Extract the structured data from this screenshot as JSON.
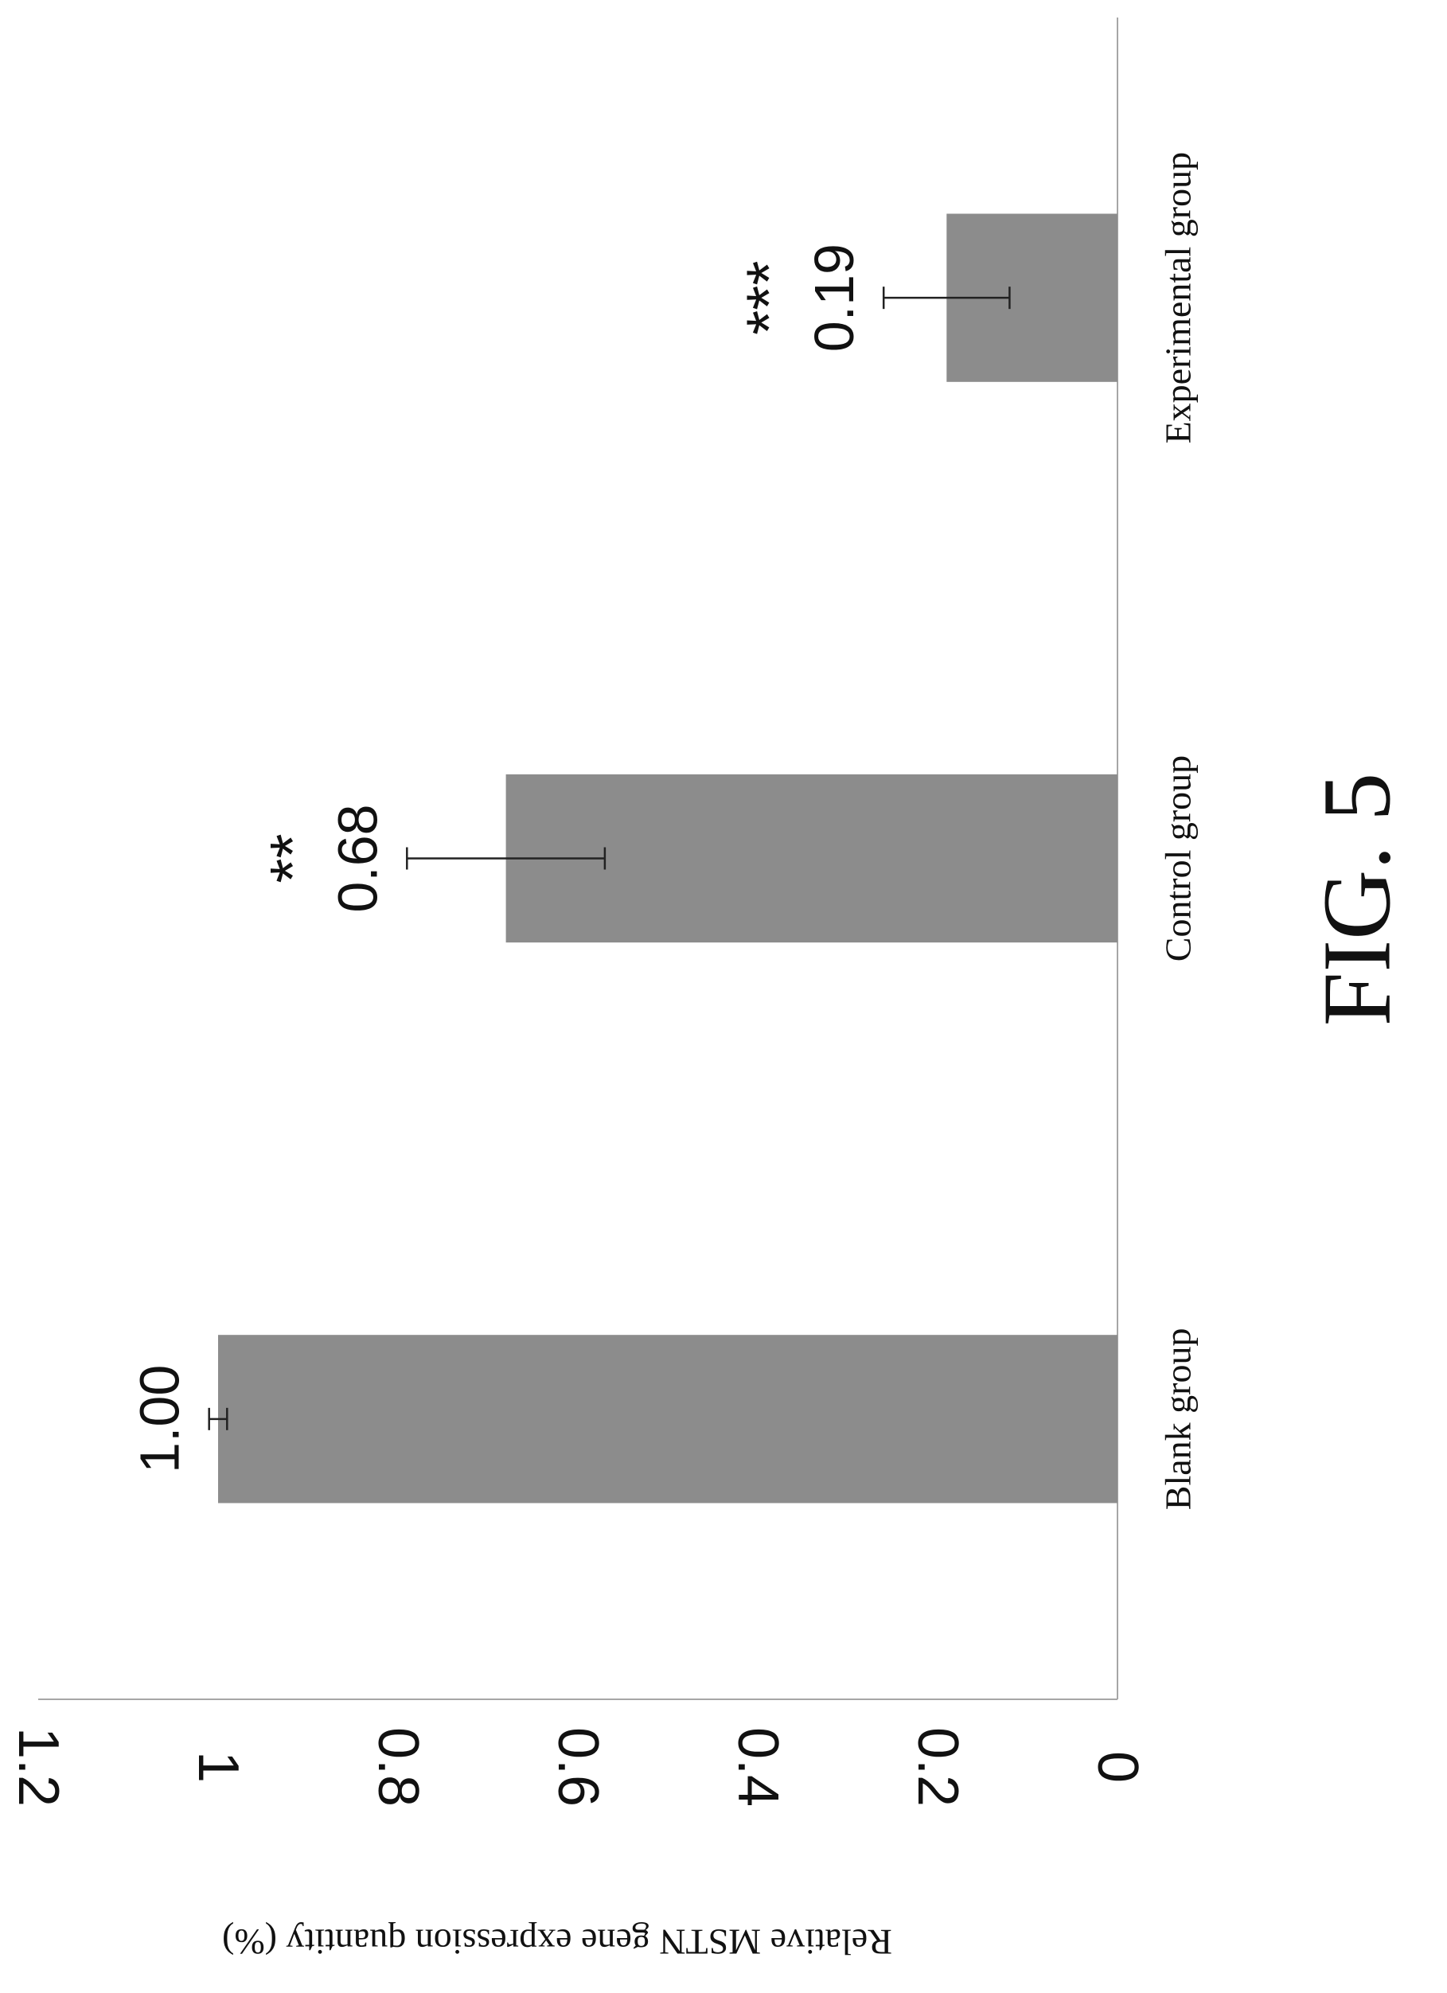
{
  "chart_data": {
    "type": "bar",
    "categories": [
      "Blank group",
      "Control group",
      "Experimental group"
    ],
    "values": [
      1.0,
      0.68,
      0.19
    ],
    "error": [
      0.01,
      0.11,
      0.07
    ],
    "data_labels": [
      "1.00",
      "0.68",
      "0.19"
    ],
    "significance": [
      "",
      "**",
      "***"
    ],
    "ylabel": "Relative MSTN gene expression quantity (%)",
    "yticks": [
      0,
      0.2,
      0.4,
      0.6,
      0.8,
      1,
      1.2
    ],
    "ytick_labels": [
      "0",
      "0.2",
      "0.4",
      "0.6",
      "0.8",
      "1",
      "1.2"
    ],
    "ylim": [
      0,
      1.2
    ],
    "grid": false,
    "legend": "none",
    "orientation": "rotated 90° clockwise on page",
    "bar_color": "#8c8c8c",
    "axis_color": "#a6a6a6"
  },
  "figure": {
    "caption": "FIG. 5"
  }
}
